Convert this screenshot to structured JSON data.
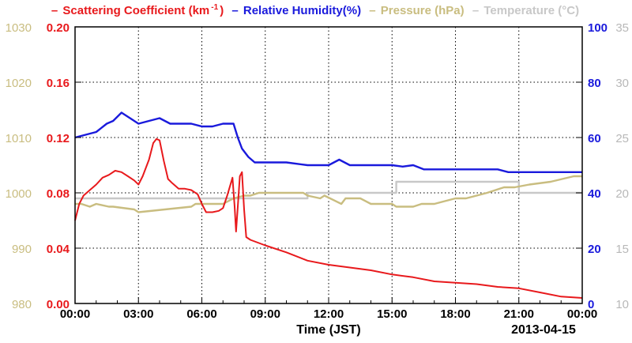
{
  "chart_data": {
    "type": "line",
    "xlabel": "Time (JST)",
    "date_label": "2013-04-15",
    "x_ticks": [
      "00:00",
      "03:00",
      "06:00",
      "09:00",
      "12:00",
      "15:00",
      "18:00",
      "21:00",
      "00:00"
    ],
    "xlim_hours": [
      0,
      24
    ],
    "grid": true,
    "legend": [
      {
        "name": "Scattering Coefficient (km",
        "sup": "-1",
        "suffix": ")",
        "color": "#e8191c"
      },
      {
        "name": "Relative Humidity(%)",
        "color": "#1a1adc"
      },
      {
        "name": "Pressure (hPa)",
        "color": "#c9bd80"
      },
      {
        "name": "Temperature (°C)",
        "color": "#c8c8c8"
      }
    ],
    "axes": {
      "scattering": {
        "ticks": [
          "0.00",
          "0.04",
          "0.08",
          "0.12",
          "0.16",
          "0.20"
        ],
        "range": [
          0,
          0.2
        ],
        "color": "#e8191c"
      },
      "pressure": {
        "ticks": [
          "980",
          "990",
          "1000",
          "1010",
          "1020",
          "1030"
        ],
        "range": [
          980,
          1030
        ],
        "color": "#c9bd80"
      },
      "humidity": {
        "ticks": [
          "0",
          "20",
          "40",
          "60",
          "80",
          "100"
        ],
        "range": [
          0,
          100
        ],
        "color": "#1a1adc"
      },
      "temperature": {
        "ticks": [
          "10",
          "15",
          "20",
          "25",
          "30",
          "35"
        ],
        "range": [
          10,
          35
        ],
        "color": "#b8b8b8"
      }
    },
    "series": [
      {
        "key": "temperature",
        "color": "#c8c8c8",
        "x": [
          0,
          11.0,
          11.0,
          15.2,
          15.2,
          21.0,
          21.0,
          24
        ],
        "y": [
          19.5,
          19.5,
          20.0,
          20.0,
          21.0,
          21.0,
          20.0,
          20.0
        ]
      },
      {
        "key": "pressure",
        "color": "#c9bd80",
        "x": [
          0,
          0.3,
          0.7,
          1.0,
          1.6,
          1.8,
          2.8,
          3.0,
          5.5,
          5.7,
          7.0,
          7.5,
          8.0,
          8.3,
          8.7,
          10.8,
          11.0,
          11.6,
          11.8,
          12.6,
          12.8,
          13.5,
          14.0,
          15.0,
          15.2,
          16.0,
          16.4,
          17.0,
          17.5,
          18.0,
          18.5,
          19.0,
          19.5,
          20.3,
          20.8,
          21.5,
          22.5,
          23.6,
          24
        ],
        "y": [
          998.0,
          998.0,
          997.5,
          998.0,
          997.5,
          997.5,
          997.0,
          996.5,
          997.5,
          998.0,
          998.0,
          999.0,
          999.5,
          999.5,
          1000.0,
          1000.0,
          999.5,
          999.0,
          999.5,
          998.0,
          999.0,
          999.0,
          998.0,
          998.0,
          997.5,
          997.5,
          998.0,
          998.0,
          998.5,
          999.0,
          999.0,
          999.5,
          1000.0,
          1001.0,
          1001.0,
          1001.5,
          1002.0,
          1003.0,
          1003.0
        ]
      },
      {
        "key": "humidity",
        "color": "#1a1adc",
        "x": [
          0,
          0.5,
          1.0,
          1.5,
          1.8,
          2.2,
          2.6,
          3.0,
          3.5,
          4.0,
          4.5,
          5.0,
          5.5,
          6.0,
          6.5,
          7.0,
          7.5,
          7.7,
          7.9,
          8.2,
          8.5,
          9.0,
          10.0,
          11.0,
          12.0,
          12.5,
          13.0,
          15.0,
          15.5,
          16.0,
          16.5,
          20.0,
          20.5,
          24
        ],
        "y": [
          60,
          61,
          62,
          65,
          66,
          69,
          67,
          65,
          66,
          67,
          65,
          65,
          65,
          64,
          64,
          65,
          65,
          60,
          56,
          53,
          51,
          51,
          51,
          50,
          50,
          52,
          50,
          50,
          49.5,
          50,
          48.5,
          48.5,
          47.5,
          47.5
        ]
      },
      {
        "key": "scattering",
        "color": "#e8191c",
        "x": [
          0,
          0.2,
          0.4,
          0.7,
          1.0,
          1.3,
          1.6,
          1.9,
          2.2,
          2.5,
          2.8,
          3.0,
          3.2,
          3.5,
          3.7,
          3.85,
          4.0,
          4.2,
          4.4,
          4.6,
          4.9,
          5.2,
          5.5,
          5.8,
          6.0,
          6.2,
          6.5,
          6.8,
          7.0,
          7.2,
          7.45,
          7.55,
          7.62,
          7.7,
          7.8,
          7.9,
          8.0,
          8.1,
          8.3,
          9.0,
          10.0,
          11.0,
          12.0,
          13.0,
          14.0,
          15.0,
          16.0,
          17.0,
          18.0,
          19.0,
          20.0,
          21.0,
          22.0,
          23.0,
          24
        ],
        "y": [
          0.06,
          0.072,
          0.078,
          0.082,
          0.086,
          0.091,
          0.093,
          0.096,
          0.095,
          0.092,
          0.089,
          0.086,
          0.092,
          0.104,
          0.116,
          0.119,
          0.118,
          0.103,
          0.09,
          0.087,
          0.083,
          0.083,
          0.082,
          0.079,
          0.072,
          0.066,
          0.066,
          0.067,
          0.069,
          0.078,
          0.091,
          0.07,
          0.052,
          0.07,
          0.092,
          0.095,
          0.068,
          0.048,
          0.046,
          0.042,
          0.037,
          0.031,
          0.028,
          0.026,
          0.024,
          0.021,
          0.019,
          0.016,
          0.015,
          0.014,
          0.012,
          0.011,
          0.008,
          0.005,
          0.004
        ]
      }
    ]
  }
}
